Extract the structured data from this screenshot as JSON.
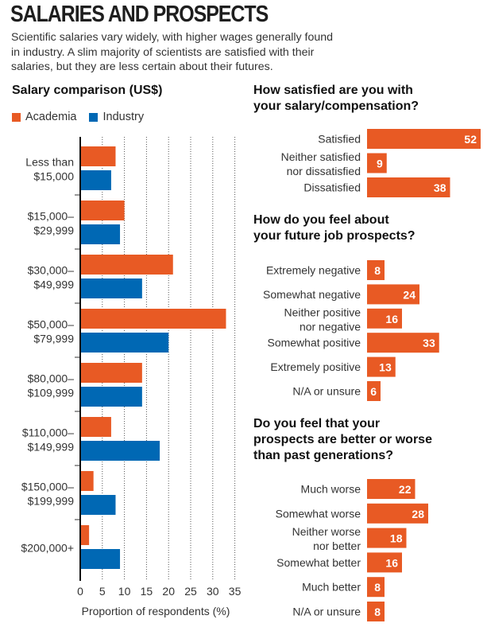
{
  "header": {
    "title": "SALARIES AND PROSPECTS",
    "subtitle": "Scientific salaries vary widely, with higher wages generally found in industry. A slim majority of scientists are satisfied with their salaries, but they are less certain about their futures."
  },
  "colors": {
    "academia": "#E85A24",
    "industry": "#0068B4",
    "survey_bar": "#E85A24"
  },
  "chart_data": [
    {
      "type": "bar",
      "orientation": "horizontal",
      "title": "Salary comparison (US$)",
      "legend": [
        "Academia",
        "Industry"
      ],
      "legend_position": "top-left",
      "categories": [
        [
          "Less than",
          "$15,000"
        ],
        [
          "$15,000–",
          "$29,999"
        ],
        [
          "$30,000–",
          "$49,999"
        ],
        [
          "$50,000–",
          "$79,999"
        ],
        [
          "$80,000–",
          "$109,999"
        ],
        [
          "$110,000–",
          "$149,999"
        ],
        [
          "$150,000–",
          "$199,999"
        ],
        [
          "$200,000+"
        ]
      ],
      "series": [
        {
          "name": "Academia",
          "values": [
            8,
            10,
            21,
            33,
            14,
            7,
            3,
            2
          ]
        },
        {
          "name": "Industry",
          "values": [
            7,
            9,
            14,
            20,
            14,
            18,
            8,
            9
          ]
        }
      ],
      "xlabel": "Proportion of respondents (%)",
      "ylabel": "",
      "xlim": [
        0,
        35
      ],
      "xticks": [
        "0",
        "5",
        "10",
        "15",
        "20",
        "25",
        "30",
        "35"
      ],
      "grid": true
    },
    {
      "type": "bar",
      "orientation": "horizontal",
      "title": "How satisfied are you with your salary/compensation?",
      "categories": [
        [
          "Satisfied"
        ],
        [
          "Neither satisfied",
          "nor dissatisfied"
        ],
        [
          "Dissatisfied"
        ]
      ],
      "values": [
        52,
        9,
        38
      ],
      "data_labels": [
        "52",
        "9",
        "38"
      ]
    },
    {
      "type": "bar",
      "orientation": "horizontal",
      "title": "How do you feel about your future job prospects?",
      "categories": [
        [
          "Extremely negative"
        ],
        [
          "Somewhat negative"
        ],
        [
          "Neither positive",
          "nor negative"
        ],
        [
          "Somewhat positive"
        ],
        [
          "Extremely positive"
        ],
        [
          "N/A or unsure"
        ]
      ],
      "values": [
        8,
        24,
        16,
        33,
        13,
        6
      ],
      "data_labels": [
        "8",
        "24",
        "16",
        "33",
        "13",
        "6"
      ]
    },
    {
      "type": "bar",
      "orientation": "horizontal",
      "title": "Do you feel that your prospects are better or worse than past generations?",
      "categories": [
        [
          "Much worse"
        ],
        [
          "Somewhat worse"
        ],
        [
          "Neither worse",
          "nor better"
        ],
        [
          "Somewhat better"
        ],
        [
          "Much better"
        ],
        [
          "N/A or unsure"
        ]
      ],
      "values": [
        22,
        28,
        18,
        16,
        8,
        8
      ],
      "data_labels": [
        "22",
        "28",
        "18",
        "16",
        "8",
        "8"
      ]
    }
  ],
  "headings": {
    "salary": "Salary comparison (US$)",
    "satisfaction": [
      "How satisfied are you with",
      "your salary/compensation?"
    ],
    "prospects": [
      "How do you feel about",
      "your future job prospects?"
    ],
    "generations": [
      "Do you feel that your",
      "prospects are better or worse",
      "than past generations?"
    ]
  },
  "legend": {
    "academia": "Academia",
    "industry": "Industry"
  }
}
